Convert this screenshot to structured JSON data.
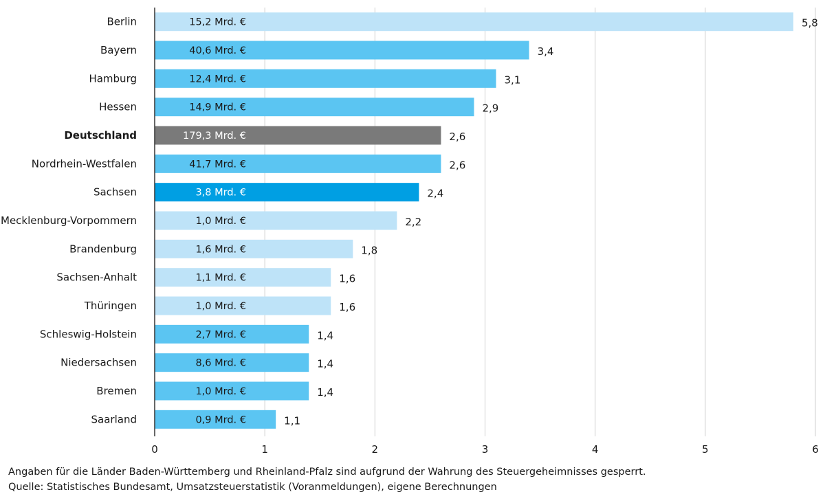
{
  "chart_data": {
    "type": "bar",
    "orientation": "horizontal",
    "categories": [
      "Berlin",
      "Bayern",
      "Hamburg",
      "Hessen",
      "Deutschland",
      "Nordrhein-Westfalen",
      "Sachsen",
      "Mecklenburg-Vorpommern",
      "Brandenburg",
      "Sachsen-Anhalt",
      "Thüringen",
      "Schleswig-Holstein",
      "Niedersachsen",
      "Bremen",
      "Saarland"
    ],
    "values": [
      5.8,
      3.4,
      3.1,
      2.9,
      2.6,
      2.6,
      2.4,
      2.2,
      1.8,
      1.6,
      1.6,
      1.4,
      1.4,
      1.4,
      1.1
    ],
    "value_labels": [
      "5,8",
      "3,4",
      "3,1",
      "2,9",
      "2,6",
      "2,6",
      "2,4",
      "2,2",
      "1,8",
      "1,6",
      "1,6",
      "1,4",
      "1,4",
      "1,4",
      "1,1"
    ],
    "bar_texts": [
      "15,2 Mrd. €",
      "40,6 Mrd. €",
      "12,4 Mrd. €",
      "14,9 Mrd. €",
      "179,3 Mrd. €",
      "41,7 Mrd. €",
      "3,8 Mrd. €",
      "1,0 Mrd. €",
      "1,6 Mrd. €",
      "1,1 Mrd. €",
      "1,0 Mrd. €",
      "2,7 Mrd. €",
      "8,6 Mrd. €",
      "1,0 Mrd. €",
      "0,9 Mrd. €"
    ],
    "bar_groups": [
      "light",
      "medium",
      "medium",
      "medium",
      "total",
      "medium",
      "highlight",
      "light",
      "light",
      "light",
      "light",
      "medium",
      "medium",
      "medium",
      "medium"
    ],
    "colors": {
      "light": "#bee3f8",
      "medium": "#5bc5f2",
      "total": "#7a7a7a",
      "highlight": "#009fe3",
      "grid": "#cfcfcf",
      "axis": "#333333",
      "text": "#1a1a1a",
      "highlight_text": "#009fe3"
    },
    "xlim": [
      0,
      6
    ],
    "xticks": [
      0,
      1,
      2,
      3,
      4,
      5,
      6
    ],
    "xtick_labels": [
      "0",
      "1",
      "2",
      "3",
      "4",
      "5",
      "6"
    ],
    "grid": true,
    "title": "",
    "xlabel": "",
    "ylabel": ""
  },
  "footnotes": {
    "note": "Angaben für die Länder Baden-Württemberg und Rheinland-Pfalz sind aufgrund der Wahrung des Steuergeheimnisses gesperrt.",
    "source": "Quelle: Statistisches Bundesamt, Umsatzsteuerstatistik (Voranmeldungen), eigene Berechnungen"
  }
}
